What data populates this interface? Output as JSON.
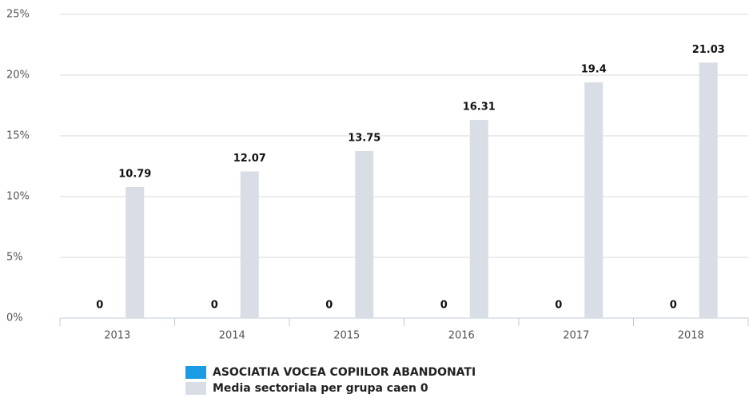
{
  "chart_data": {
    "type": "bar",
    "categories": [
      "2013",
      "2014",
      "2015",
      "2016",
      "2017",
      "2018"
    ],
    "series": [
      {
        "name": "ASOCIATIA VOCEA COPIILOR ABANDONATI",
        "color": "#1a9be3",
        "values": [
          0,
          0,
          0,
          0,
          0,
          0
        ]
      },
      {
        "name": "Media sectoriala per grupa caen 0",
        "color": "#d9dde6",
        "values": [
          10.79,
          12.07,
          13.75,
          16.31,
          19.4,
          21.03
        ]
      }
    ],
    "ylim": [
      0,
      25
    ],
    "yticks": [
      {
        "value": 0,
        "label": "0%"
      },
      {
        "value": 5,
        "label": "5%"
      },
      {
        "value": 10,
        "label": "10%"
      },
      {
        "value": 15,
        "label": "15%"
      },
      {
        "value": 20,
        "label": "20%"
      },
      {
        "value": 25,
        "label": "25%"
      }
    ],
    "grid": true,
    "legend": "bottom"
  }
}
